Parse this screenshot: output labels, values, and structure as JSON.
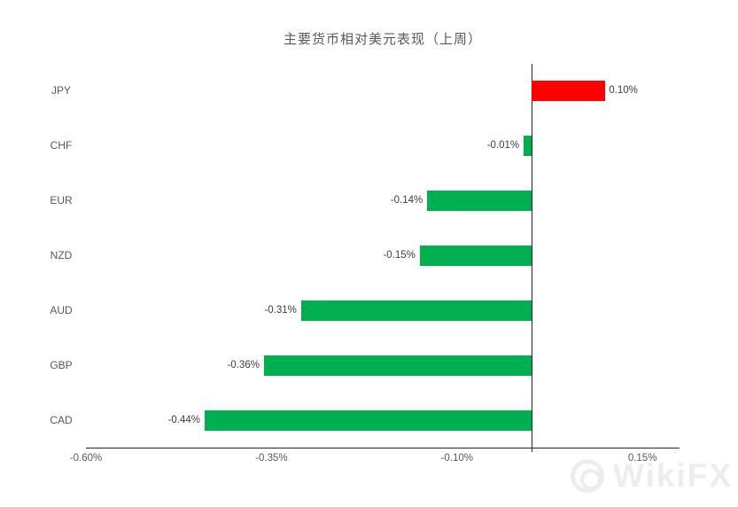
{
  "title": "主要货币相对美元表现（上周）",
  "watermark": {
    "brand": "WikiFX",
    "logo": "wikifx-logo"
  },
  "chart_data": {
    "type": "bar",
    "orientation": "horizontal",
    "title": "主要货币相对美元表现（上周）",
    "xlabel": "",
    "ylabel": "",
    "categories": [
      "JPY",
      "CHF",
      "EUR",
      "NZD",
      "AUD",
      "GBP",
      "CAD"
    ],
    "values": [
      0.1,
      -0.01,
      -0.14,
      -0.15,
      -0.31,
      -0.36,
      -0.44
    ],
    "value_labels": [
      "0.10%",
      "-0.01%",
      "-0.14%",
      "-0.15%",
      "-0.31%",
      "-0.36%",
      "-0.44%"
    ],
    "xlim": [
      -0.6,
      0.2
    ],
    "x_ticks": [
      -0.6,
      -0.35,
      -0.1,
      0.15
    ],
    "x_tick_labels": [
      "-0.60%",
      "-0.35%",
      "-0.10%",
      "0.15%"
    ],
    "grid": false,
    "legend": false,
    "colors": {
      "positive": "#ff0000",
      "negative": "#00b050",
      "axis": "#262626",
      "text": "#595959"
    }
  }
}
